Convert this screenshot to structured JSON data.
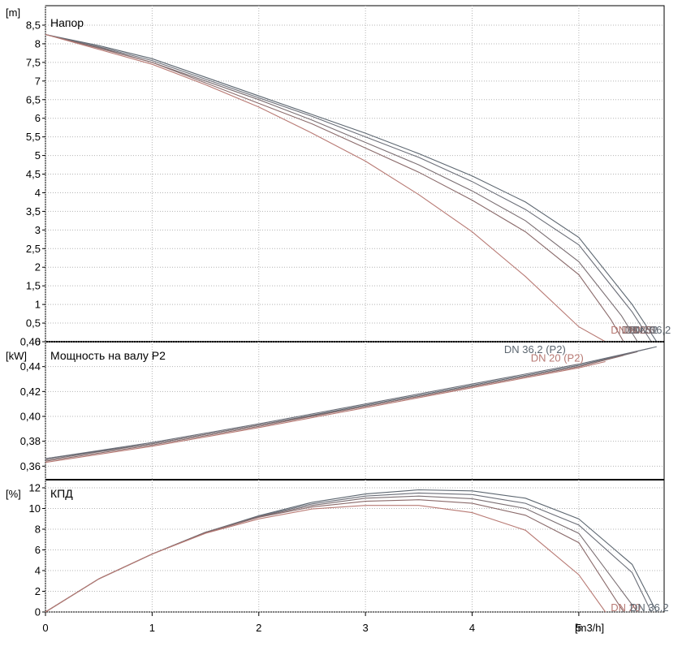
{
  "chart_data": {
    "type": "line",
    "x_axis": {
      "unit": "[m3/h]",
      "range": [
        0,
        5.8
      ],
      "ticks": [
        "0",
        "1",
        "2",
        "3",
        "4",
        "5"
      ]
    },
    "colors": {
      "series": [
        "#5c6670",
        "#6b6e78",
        "#7a6e72",
        "#8a6a6a",
        "#b87a74"
      ],
      "grid": "#b4b4b4",
      "frame": "#000000"
    },
    "panels": [
      {
        "id": "head",
        "title": "Напор",
        "unit": "[m]",
        "ylim": [
          0,
          8.5
        ],
        "ytick_step": 0.5,
        "grid": true,
        "series": [
          {
            "x": [
              0,
              0.5,
              1,
              1.5,
              2,
              2.5,
              3,
              3.5,
              4,
              4.5,
              5,
              5.5,
              5.73
            ],
            "y": [
              8.25,
              7.95,
              7.6,
              7.1,
              6.6,
              6.1,
              5.6,
              5.05,
              4.45,
              3.75,
              2.8,
              1.0,
              0
            ]
          },
          {
            "x": [
              0,
              0.5,
              1,
              1.5,
              2,
              2.5,
              3,
              3.5,
              4,
              4.5,
              5,
              5.5,
              5.68
            ],
            "y": [
              8.25,
              7.92,
              7.55,
              7.05,
              6.55,
              6.05,
              5.5,
              4.95,
              4.3,
              3.55,
              2.6,
              0.8,
              0
            ]
          },
          {
            "x": [
              0,
              0.5,
              1,
              1.5,
              2,
              2.5,
              3,
              3.5,
              4,
              4.5,
              5,
              5.4,
              5.55
            ],
            "y": [
              8.25,
              7.9,
              7.5,
              7.0,
              6.5,
              5.95,
              5.35,
              4.75,
              4.05,
              3.25,
              2.15,
              0.7,
              0
            ]
          },
          {
            "x": [
              0,
              0.5,
              1,
              1.5,
              2,
              2.5,
              3,
              3.5,
              4,
              4.5,
              5,
              5.3,
              5.42
            ],
            "y": [
              8.25,
              7.88,
              7.5,
              6.95,
              6.4,
              5.85,
              5.2,
              4.55,
              3.8,
              2.95,
              1.8,
              0.6,
              0
            ]
          },
          {
            "x": [
              0,
              0.5,
              1,
              1.5,
              2,
              2.5,
              3,
              3.5,
              4,
              4.5,
              5,
              5.25
            ],
            "y": [
              8.25,
              7.85,
              7.45,
              6.9,
              6.3,
              5.6,
              4.85,
              3.95,
              2.95,
              1.75,
              0.4,
              0
            ]
          }
        ],
        "labels": [
          {
            "text": "DN 20",
            "series": 4,
            "x": 5.3,
            "y": 0.3
          },
          {
            "text": "DN 36,2",
            "series": 0,
            "x": 5.5,
            "y": 0.3
          },
          {
            "text": "DN 32",
            "series": 1,
            "x": 5.46,
            "y": 0.3
          },
          {
            "text": "DN 28",
            "series": 2,
            "x": 5.43,
            "y": 0.3
          },
          {
            "text": "DN 25",
            "series": 3,
            "x": 5.4,
            "y": 0.3
          }
        ]
      },
      {
        "id": "power",
        "title": "Мощность на валу P2",
        "unit": "[kW]",
        "ylim": [
          0.355,
          0.46
        ],
        "ytick_step": 0.02,
        "ytick_start": 0.36,
        "ytick_decimals": 2,
        "grid": true,
        "series": [
          {
            "x": [
              0,
              1,
              2,
              3,
              4,
              5,
              5.73
            ],
            "y": [
              0.366,
              0.378,
              0.393,
              0.409,
              0.425,
              0.441,
              0.456
            ]
          },
          {
            "x": [
              0,
              1,
              2,
              3,
              4,
              5,
              5.68
            ],
            "y": [
              0.366,
              0.379,
              0.394,
              0.41,
              0.426,
              0.442,
              0.455
            ]
          },
          {
            "x": [
              0,
              1,
              2,
              3,
              4,
              5,
              5.55
            ],
            "y": [
              0.365,
              0.378,
              0.393,
              0.408,
              0.424,
              0.44,
              0.452
            ]
          },
          {
            "x": [
              0,
              1,
              2,
              3,
              4,
              5,
              5.42
            ],
            "y": [
              0.364,
              0.377,
              0.392,
              0.408,
              0.424,
              0.44,
              0.449
            ]
          },
          {
            "x": [
              0,
              1,
              2,
              3,
              4,
              5,
              5.25
            ],
            "y": [
              0.363,
              0.376,
              0.391,
              0.407,
              0.423,
              0.439,
              0.444
            ]
          }
        ],
        "labels": [
          {
            "text": "DN 36,2 (P2)",
            "series": 0,
            "x": 4.3,
            "y": 0.4535
          },
          {
            "text": "DN 20 (P2)",
            "series": 4,
            "x": 4.55,
            "y": 0.4465
          }
        ]
      },
      {
        "id": "efficiency",
        "title": "КПД",
        "unit": "[%]",
        "ylim": [
          0,
          12
        ],
        "ytick_step": 2,
        "grid": true,
        "series": [
          {
            "x": [
              0,
              0.5,
              1,
              1.5,
              2,
              2.5,
              3,
              3.5,
              4,
              4.5,
              5,
              5.5,
              5.73
            ],
            "y": [
              0,
              3.2,
              5.6,
              7.7,
              9.3,
              10.6,
              11.4,
              11.8,
              11.7,
              11.0,
              9.0,
              4.6,
              0
            ]
          },
          {
            "x": [
              0,
              0.5,
              1,
              1.5,
              2,
              2.5,
              3,
              3.5,
              4,
              4.5,
              5,
              5.5,
              5.68
            ],
            "y": [
              0,
              3.2,
              5.6,
              7.7,
              9.25,
              10.45,
              11.2,
              11.5,
              11.35,
              10.5,
              8.4,
              3.8,
              0
            ]
          },
          {
            "x": [
              0,
              0.5,
              1,
              1.5,
              2,
              2.5,
              3,
              3.5,
              4,
              4.5,
              5,
              5.55
            ],
            "y": [
              0,
              3.2,
              5.6,
              7.7,
              9.2,
              10.3,
              11.0,
              11.2,
              10.95,
              10.0,
              7.6,
              0
            ]
          },
          {
            "x": [
              0,
              0.5,
              1,
              1.5,
              2,
              2.5,
              3,
              3.5,
              4,
              4.5,
              5,
              5.42
            ],
            "y": [
              0,
              3.2,
              5.6,
              7.65,
              9.15,
              10.15,
              10.7,
              10.85,
              10.5,
              9.35,
              6.7,
              0
            ]
          },
          {
            "x": [
              0,
              0.5,
              1,
              1.5,
              2,
              2.5,
              3,
              3.5,
              4,
              4.5,
              5,
              5.25
            ],
            "y": [
              0,
              3.2,
              5.6,
              7.6,
              9.0,
              9.95,
              10.3,
              10.3,
              9.6,
              7.9,
              3.6,
              0
            ]
          }
        ],
        "labels": [
          {
            "text": "DN 20",
            "series": 4,
            "x": 5.3,
            "y": 0.4
          },
          {
            "text": "DN 36,2",
            "series": 0,
            "x": 5.48,
            "y": 0.4
          }
        ]
      }
    ]
  }
}
